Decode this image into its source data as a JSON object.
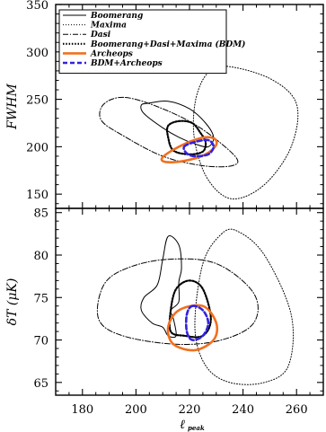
{
  "chart_data": [
    {
      "type": "contour",
      "panel": "top",
      "xlabel": "ℓ",
      "xlabel_subscript": "peak",
      "ylabel": "FWHM",
      "xlim": [
        170,
        270
      ],
      "ylim": [
        135,
        350
      ],
      "xticks": [
        180,
        200,
        220,
        240,
        260
      ],
      "yticks": [
        150,
        200,
        250,
        300,
        350
      ],
      "legend": {
        "position": "top-left",
        "entries": [
          {
            "label": "Boomerang",
            "style": "solid",
            "color": "#000000"
          },
          {
            "label": "Maxima",
            "style": "dotted",
            "color": "#000000"
          },
          {
            "label": "Dasi",
            "style": "dashdot",
            "color": "#000000"
          },
          {
            "label": "Boomerang+Dasi+Maxima (BDM)",
            "style": "dotted-thick",
            "color": "#000000"
          },
          {
            "label": "Archeops",
            "style": "solid-thick",
            "color": "#f07020"
          },
          {
            "label": "BDM+Archeops",
            "style": "dashed-thick",
            "color": "#3322dd"
          }
        ]
      },
      "series": [
        {
          "name": "Boomerang",
          "points": [
            [
              205,
              246
            ],
            [
              212,
              248
            ],
            [
              220,
              240
            ],
            [
              226,
              225
            ],
            [
              229,
              210
            ],
            [
              227,
              200
            ],
            [
              222,
              203
            ],
            [
              216,
              210
            ],
            [
              210,
              220
            ],
            [
              203,
              235
            ],
            [
              202,
              244
            ],
            [
              205,
              246
            ]
          ]
        },
        {
          "name": "Maxima",
          "points": [
            [
              233,
              285
            ],
            [
              250,
              272
            ],
            [
              260,
              245
            ],
            [
              258,
              200
            ],
            [
              248,
              160
            ],
            [
              236,
              145
            ],
            [
              227,
              165
            ],
            [
              222,
              205
            ],
            [
              222,
              245
            ],
            [
              226,
              275
            ],
            [
              233,
              285
            ]
          ]
        },
        {
          "name": "Dasi",
          "points": [
            [
              196,
              252
            ],
            [
              210,
              240
            ],
            [
              224,
              220
            ],
            [
              237,
              190
            ],
            [
              236,
              180
            ],
            [
              225,
              180
            ],
            [
              210,
              190
            ],
            [
              195,
              212
            ],
            [
              187,
              228
            ],
            [
              188,
              245
            ],
            [
              196,
              252
            ]
          ]
        },
        {
          "name": "Boomerang+Dasi+Maxima (BDM)",
          "points": [
            [
              216,
              227
            ],
            [
              221,
              225
            ],
            [
              224,
              215
            ],
            [
              226,
              205
            ],
            [
              225,
              195
            ],
            [
              220,
              192
            ],
            [
              214,
              196
            ],
            [
              212,
              210
            ],
            [
              212,
              222
            ],
            [
              216,
              227
            ]
          ]
        },
        {
          "name": "Archeops",
          "points": [
            [
              210,
              189
            ],
            [
              216,
              200
            ],
            [
              224,
              209
            ],
            [
              229,
              209
            ],
            [
              230,
              202
            ],
            [
              226,
              192
            ],
            [
              218,
              185
            ],
            [
              211,
              184
            ],
            [
              210,
              189
            ]
          ]
        },
        {
          "name": "BDM+Archeops",
          "points": [
            [
              218,
              200
            ],
            [
              222,
              205
            ],
            [
              227,
              207
            ],
            [
              229,
              200
            ],
            [
              227,
              192
            ],
            [
              222,
              190
            ],
            [
              219,
              193
            ],
            [
              218,
              200
            ]
          ]
        }
      ]
    },
    {
      "type": "contour",
      "panel": "bottom",
      "xlabel": "ℓ",
      "xlabel_subscript": "peak",
      "ylabel": "δT (μK)",
      "xlim": [
        170,
        270
      ],
      "ylim": [
        63.5,
        85.5
      ],
      "xticks": [
        180,
        200,
        220,
        240,
        260
      ],
      "yticks": [
        65,
        70,
        75,
        80,
        85
      ],
      "series": [
        {
          "name": "Boomerang",
          "points": [
            [
              212,
              82.2
            ],
            [
              216,
              81.2
            ],
            [
              217,
              78.5
            ],
            [
              216,
              76.8
            ],
            [
              216,
              74.5
            ],
            [
              213,
              73.5
            ],
            [
              214,
              72.5
            ],
            [
              215,
              70.5
            ],
            [
              212,
              70.5
            ],
            [
              210,
              71.5
            ],
            [
              206,
              72.0
            ],
            [
              202,
              73.5
            ],
            [
              203,
              75.0
            ],
            [
              208,
              76.5
            ],
            [
              210,
              79.5
            ],
            [
              212,
              82.2
            ]
          ]
        },
        {
          "name": "Maxima",
          "points": [
            [
              232,
              82.5
            ],
            [
              238,
              82.8
            ],
            [
              248,
              80.0
            ],
            [
              258,
              73.0
            ],
            [
              257,
              67.0
            ],
            [
              248,
              65.0
            ],
            [
              235,
              65.0
            ],
            [
              226,
              67.0
            ],
            [
              222,
              71.5
            ],
            [
              225,
              79.0
            ],
            [
              232,
              82.5
            ]
          ]
        },
        {
          "name": "Dasi",
          "points": [
            [
              212,
              79.5
            ],
            [
              230,
              79.0
            ],
            [
              244,
              75.5
            ],
            [
              244,
              72.0
            ],
            [
              232,
              70.0
            ],
            [
              215,
              69.5
            ],
            [
              195,
              70.5
            ],
            [
              186,
              72.5
            ],
            [
              188,
              76.5
            ],
            [
              197,
              78.5
            ],
            [
              212,
              79.5
            ]
          ]
        },
        {
          "name": "Boomerang+Dasi+Maxima (BDM)",
          "points": [
            [
              220,
              77.0
            ],
            [
              225,
              76.0
            ],
            [
              228,
              72.5
            ],
            [
              225,
              70.5
            ],
            [
              218,
              70.5
            ],
            [
              213,
              71.0
            ],
            [
              213,
              73.5
            ],
            [
              215,
              76.0
            ],
            [
              220,
              77.0
            ]
          ]
        },
        {
          "name": "Archeops",
          "points": [
            [
              225,
              74.0
            ],
            [
              230,
              72.0
            ],
            [
              229,
              70.0
            ],
            [
              222,
              68.8
            ],
            [
              214,
              69.5
            ],
            [
              212,
              71.5
            ],
            [
              216,
              73.5
            ],
            [
              225,
              74.0
            ]
          ]
        },
        {
          "name": "BDM+Archeops",
          "points": [
            [
              221,
              74.0
            ],
            [
              225,
              73.5
            ],
            [
              227,
              72.0
            ],
            [
              225,
              70.5
            ],
            [
              221,
              70.0
            ],
            [
              219,
              71.0
            ],
            [
              219,
              73.0
            ],
            [
              221,
              74.0
            ]
          ]
        }
      ]
    }
  ]
}
